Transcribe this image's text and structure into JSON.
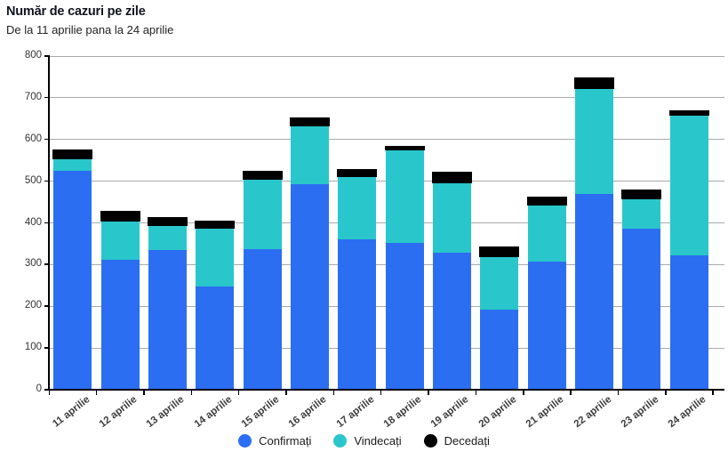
{
  "header": {
    "title": "Număr de cazuri pe zile",
    "subtitle": "De la 11 aprilie pana la 24 aprilie"
  },
  "chart_data": {
    "type": "bar",
    "stacked": true,
    "title": "Număr de cazuri pe zile",
    "subtitle": "De la 11 aprilie pana la 24 aprilie",
    "categories": [
      "11 aprilie",
      "12 aprilie",
      "13 aprilie",
      "14 aprilie",
      "15 aprilie",
      "16 aprilie",
      "17 aprilie",
      "18 aprilie",
      "19 aprilie",
      "20 aprilie",
      "21 aprilie",
      "22 aprilie",
      "23 aprilie",
      "24 aprilie"
    ],
    "series": [
      {
        "name": "Confirmați",
        "color": "#2B6EF2",
        "values": [
          523,
          310,
          333,
          246,
          337,
          491,
          360,
          351,
          328,
          190,
          306,
          468,
          386,
          321
        ]
      },
      {
        "name": "Vindecați",
        "color": "#29C7CB",
        "values": [
          28,
          93,
          58,
          139,
          165,
          139,
          149,
          221,
          165,
          126,
          135,
          251,
          70,
          336
        ]
      },
      {
        "name": "Decedați",
        "color": "#000000",
        "values": [
          23,
          25,
          21,
          19,
          21,
          21,
          19,
          12,
          28,
          27,
          20,
          28,
          22,
          12
        ]
      }
    ],
    "ylim": [
      0,
      800
    ],
    "yticks": [
      0,
      100,
      200,
      300,
      400,
      500,
      600,
      700,
      800
    ],
    "grid": true,
    "legend_position": "bottom",
    "grid_color": "#aaaaaa",
    "axis_color": "#000000"
  }
}
